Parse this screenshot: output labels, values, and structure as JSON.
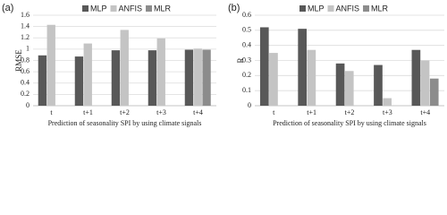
{
  "chart_data": [
    {
      "type": "bar",
      "panel_label": "(a)",
      "ylabel": "RMSE",
      "xlabel": "Prediction of seasonality SPI by using climate signals",
      "categories": [
        "t",
        "t+1",
        "t+2",
        "t+3",
        "t+4"
      ],
      "series": [
        {
          "name": "MLP",
          "color": "#585858",
          "values": [
            0.89,
            0.87,
            0.98,
            0.98,
            0.99
          ]
        },
        {
          "name": "ANFIS",
          "color": "#c4c4c4",
          "values": [
            1.43,
            1.1,
            1.34,
            1.19,
            1.01
          ]
        },
        {
          "name": "MLR",
          "color": "#8c8c8c",
          "values": [
            null,
            null,
            null,
            null,
            0.99
          ]
        }
      ],
      "ylim": [
        0,
        1.6
      ],
      "yticks": [
        0,
        0.2,
        0.4,
        0.6,
        0.8,
        1,
        1.2,
        1.4,
        1.6
      ],
      "grid": true,
      "legend": "top"
    },
    {
      "type": "bar",
      "panel_label": "(b)",
      "ylabel": "R",
      "xlabel": "Prediction of seasonality SPI by using climate signals",
      "categories": [
        "t",
        "t+1",
        "t+2",
        "t+3",
        "t+4"
      ],
      "series": [
        {
          "name": "MLP",
          "color": "#585858",
          "values": [
            0.52,
            0.51,
            0.28,
            0.27,
            0.37
          ]
        },
        {
          "name": "ANFIS",
          "color": "#c4c4c4",
          "values": [
            0.35,
            0.37,
            0.23,
            0.05,
            0.3
          ]
        },
        {
          "name": "MLR",
          "color": "#8c8c8c",
          "values": [
            null,
            null,
            null,
            null,
            0.18
          ]
        }
      ],
      "ylim": [
        0,
        0.6
      ],
      "yticks": [
        0,
        0.1,
        0.2,
        0.3,
        0.4,
        0.5,
        0.6
      ],
      "grid": true,
      "legend": "top"
    }
  ]
}
